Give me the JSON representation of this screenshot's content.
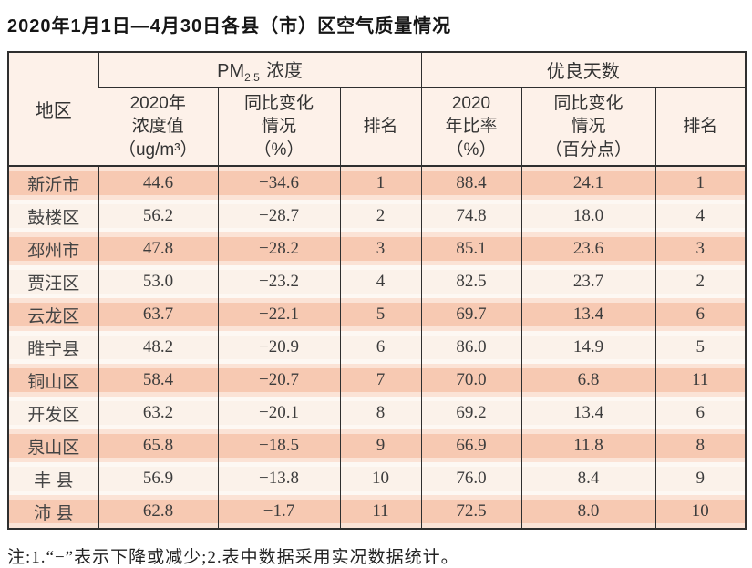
{
  "title": "2020年1月1日—4月30日各县（市）区空气质量情况",
  "table": {
    "col_region": "地区",
    "groups": [
      {
        "pm_prefix": "PM",
        "pm_sub": "2.5",
        "pm_suffix": "浓度"
      },
      {
        "label": "优良天数"
      }
    ],
    "subheaders": [
      "2020年\n浓度值\n（ug/m³）",
      "同比变化\n情况\n（%）",
      "排名",
      "2020\n年比率\n（%）",
      "同比变化\n情况\n（百分点）",
      "排名"
    ],
    "rows": [
      {
        "region": "新沂市",
        "pm_value": "44.6",
        "pm_change": "−34.6",
        "pm_rank": "1",
        "rate": "88.4",
        "rate_change": "24.1",
        "rate_rank": "1"
      },
      {
        "region": "鼓楼区",
        "pm_value": "56.2",
        "pm_change": "−28.7",
        "pm_rank": "2",
        "rate": "74.8",
        "rate_change": "18.0",
        "rate_rank": "4"
      },
      {
        "region": "邳州市",
        "pm_value": "47.8",
        "pm_change": "−28.2",
        "pm_rank": "3",
        "rate": "85.1",
        "rate_change": "23.6",
        "rate_rank": "3"
      },
      {
        "region": "贾汪区",
        "pm_value": "53.0",
        "pm_change": "−23.2",
        "pm_rank": "4",
        "rate": "82.5",
        "rate_change": "23.7",
        "rate_rank": "2"
      },
      {
        "region": "云龙区",
        "pm_value": "63.7",
        "pm_change": "−22.1",
        "pm_rank": "5",
        "rate": "69.7",
        "rate_change": "13.4",
        "rate_rank": "6"
      },
      {
        "region": "睢宁县",
        "pm_value": "48.2",
        "pm_change": "−20.9",
        "pm_rank": "6",
        "rate": "86.0",
        "rate_change": "14.9",
        "rate_rank": "5"
      },
      {
        "region": "铜山区",
        "pm_value": "58.4",
        "pm_change": "−20.7",
        "pm_rank": "7",
        "rate": "70.0",
        "rate_change": "6.8",
        "rate_rank": "11"
      },
      {
        "region": "开发区",
        "pm_value": "63.2",
        "pm_change": "−20.1",
        "pm_rank": "8",
        "rate": "69.2",
        "rate_change": "13.4",
        "rate_rank": "6"
      },
      {
        "region": "泉山区",
        "pm_value": "65.8",
        "pm_change": "−18.5",
        "pm_rank": "9",
        "rate": "66.9",
        "rate_change": "11.8",
        "rate_rank": "8"
      },
      {
        "region": "丰 县",
        "pm_value": "56.9",
        "pm_change": "−13.8",
        "pm_rank": "10",
        "rate": "76.0",
        "rate_change": "8.4",
        "rate_rank": "9"
      },
      {
        "region": "沛 县",
        "pm_value": "62.8",
        "pm_change": "−1.7",
        "pm_rank": "11",
        "rate": "72.5",
        "rate_change": "8.0",
        "rate_rank": "10"
      }
    ]
  },
  "note": "注:1.“−”表示下降或减少;2.表中数据采用实况数据统计。",
  "theme": {
    "line": "#2f2f2f",
    "header_bg": "#fdf1e9",
    "row_salmon": "#f7c9b2",
    "row_salmon_edge": "#fbe3d6",
    "row_cream": "#fbf2ea",
    "row_cream_edge": "#fdf8f3",
    "text": "#3c3c3c",
    "title_color": "#151515"
  }
}
